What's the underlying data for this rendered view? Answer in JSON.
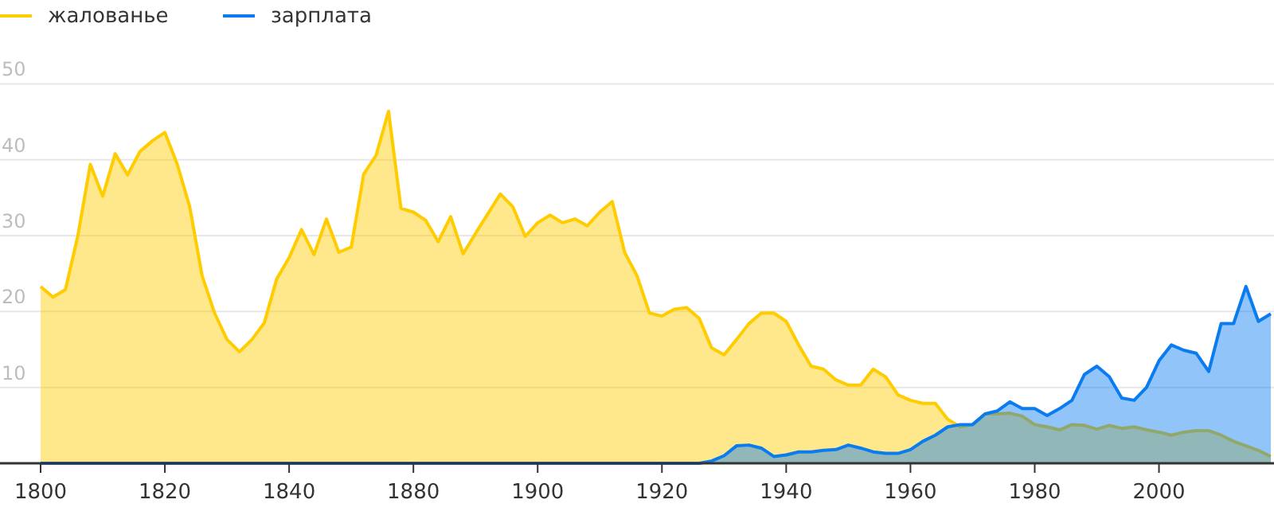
{
  "chart_data": {
    "type": "area",
    "categories": [
      "1800",
      null,
      null,
      null,
      null,
      null,
      null,
      null,
      null,
      null,
      "1820",
      null,
      null,
      null,
      null,
      null,
      null,
      null,
      null,
      null,
      "1840",
      null,
      null,
      null,
      null,
      null,
      null,
      null,
      null,
      null,
      "1880",
      null,
      null,
      null,
      null,
      null,
      null,
      null,
      null,
      null,
      "1900",
      null,
      null,
      null,
      null,
      null,
      null,
      null,
      null,
      null,
      "1920",
      null,
      null,
      null,
      null,
      null,
      null,
      null,
      null,
      null,
      "1940",
      null,
      null,
      null,
      null,
      null,
      null,
      null,
      null,
      null,
      "1960",
      null,
      null,
      null,
      null,
      null,
      null,
      null,
      null,
      null,
      "1980",
      null,
      null,
      null,
      null,
      null,
      null,
      null,
      null,
      null,
      "2000",
      null,
      null,
      null,
      null,
      null,
      null,
      null,
      null,
      null
    ],
    "series": [
      {
        "name": "жалованье",
        "color": "#ffcc00",
        "values": [
          23.3,
          21.9,
          22.9,
          30,
          39.4,
          35.2,
          40.8,
          38,
          41.1,
          42.5,
          43.6,
          39.4,
          33.8,
          24.7,
          19.8,
          16.3,
          14.7,
          16.3,
          18.5,
          24.3,
          27.1,
          30.8,
          27.5,
          32.2,
          27.8,
          28.5,
          38.1,
          40.6,
          46.4,
          33.6,
          33.1,
          32,
          29.2,
          32.5,
          27.6,
          30.3,
          32.9,
          35.5,
          33.8,
          29.9,
          31.7,
          32.7,
          31.7,
          32.2,
          31.3,
          33.1,
          34.5,
          27.8,
          24.7,
          19.8,
          19.4,
          20.3,
          20.5,
          19.1,
          15.2,
          14.3,
          16.3,
          18.4,
          19.8,
          19.8,
          18.7,
          15.6,
          12.8,
          12.4,
          11,
          10.3,
          10.3,
          12.4,
          11.4,
          9,
          8.3,
          7.9,
          7.9,
          5.8,
          4.8,
          5.1,
          6.5,
          6.5,
          6.6,
          6.2,
          5.1,
          4.8,
          4.4,
          5.1,
          5,
          4.5,
          5,
          4.6,
          4.8,
          4.4,
          4.1,
          3.7,
          4.1,
          4.3,
          4.3,
          3.7,
          2.9,
          2.3,
          1.7,
          0.9
        ]
      },
      {
        "name": "зарплата",
        "color": "#0a7cf0",
        "values": [
          0,
          0,
          0,
          0,
          0,
          0,
          0,
          0,
          0,
          0,
          0,
          0,
          0,
          0,
          0,
          0,
          0,
          0,
          0,
          0,
          0,
          0,
          0,
          0,
          0,
          0,
          0,
          0,
          0,
          0,
          0,
          0,
          0,
          0,
          0,
          0,
          0,
          0,
          0,
          0,
          0,
          0,
          0,
          0,
          0,
          0,
          0,
          0,
          0,
          0,
          0,
          0,
          0,
          0,
          0.3,
          1,
          2.3,
          2.4,
          2,
          0.9,
          1.1,
          1.5,
          1.5,
          1.7,
          1.8,
          2.4,
          2,
          1.5,
          1.3,
          1.3,
          1.8,
          2.9,
          3.7,
          4.8,
          5.1,
          5.1,
          6.5,
          6.9,
          8.1,
          7.2,
          7.2,
          6.3,
          7.2,
          8.3,
          11.7,
          12.8,
          11.4,
          8.6,
          8.3,
          10,
          13.5,
          15.6,
          14.9,
          14.5,
          12.1,
          18.4,
          18.4,
          23.3,
          18.7,
          19.7
        ]
      }
    ],
    "ylim": [
      0,
      50
    ],
    "yticks": [
      10,
      20,
      30,
      40,
      50
    ],
    "grid": "y",
    "legend": "top left"
  }
}
